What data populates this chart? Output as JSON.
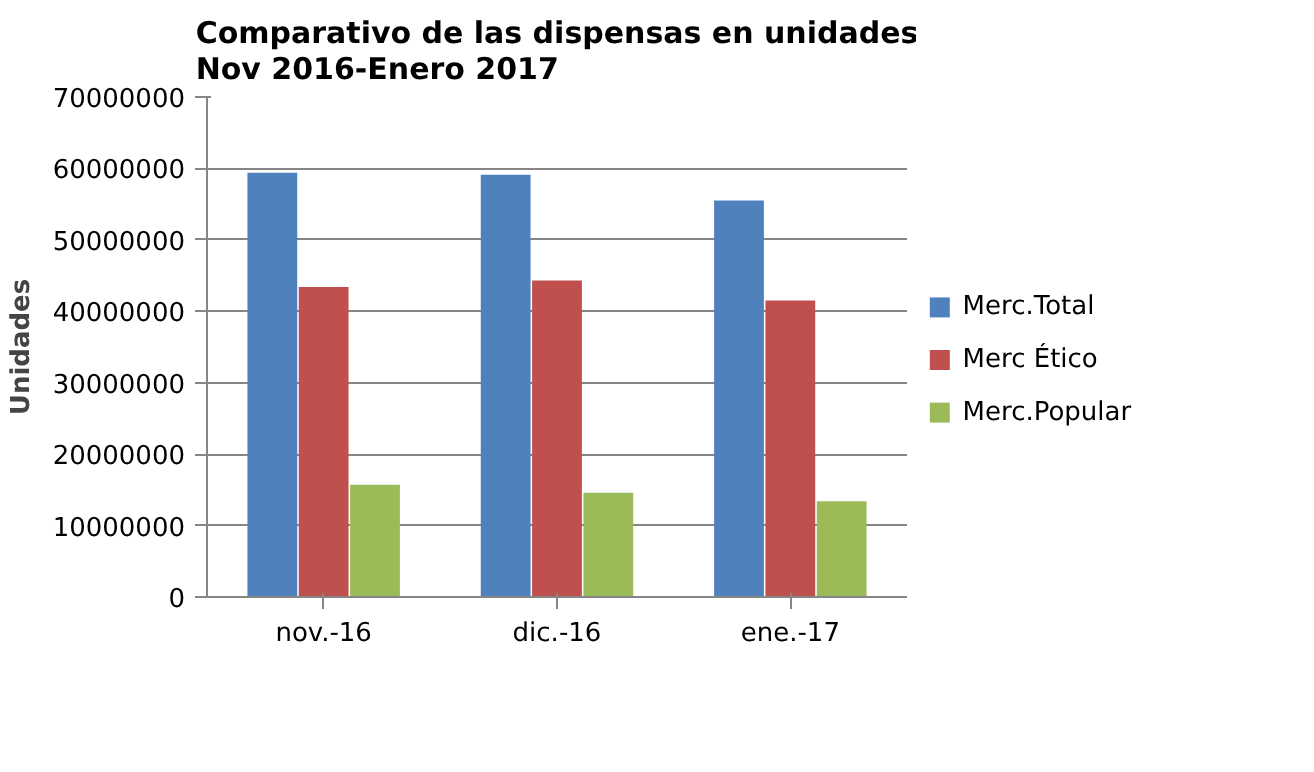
{
  "chart_data": {
    "type": "bar",
    "title": "Comparativo de las dispensas en unidades\nNov 2016-Enero 2017",
    "ylabel": "Unidades",
    "categories": [
      "nov.-16",
      "dic.-16",
      "ene.-17"
    ],
    "series": [
      {
        "name": "Merc.Total",
        "color": "#4f81bd",
        "values": [
          59400000,
          59100000,
          55500000
        ]
      },
      {
        "name": "Merc Ético",
        "color": "#c0504d",
        "values": [
          43400000,
          44300000,
          41500000
        ]
      },
      {
        "name": "Merc.Popular",
        "color": "#9bbb59",
        "values": [
          15700000,
          14600000,
          13400000
        ]
      }
    ],
    "ylim": [
      0,
      70000000
    ],
    "yticks": [
      0,
      10000000,
      20000000,
      30000000,
      40000000,
      50000000,
      60000000,
      70000000
    ],
    "grid": "y",
    "legend": "right"
  }
}
